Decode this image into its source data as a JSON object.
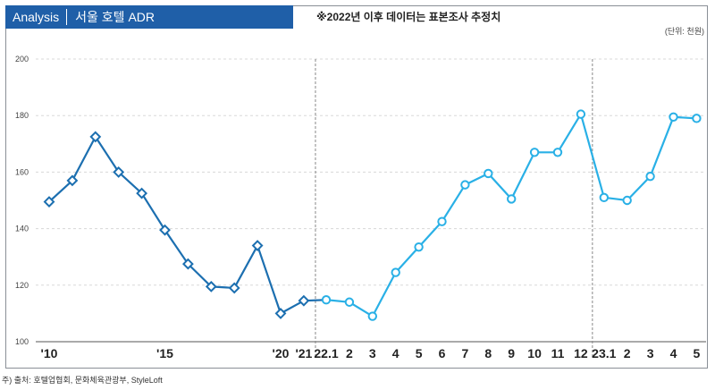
{
  "header": {
    "tag": "Analysis",
    "title": "서울 호텔 ADR"
  },
  "note": "※2022년 이후 데이터는 표본조사 추정치",
  "unit": "(단위: 천원)",
  "source": "주) 출처: 호텔업협회, 문화체육관광부, StyleLoft",
  "colors": {
    "annual": "#1c6fb0",
    "monthly": "#29b0e6",
    "header": "#1f5fa8"
  },
  "chart_data": {
    "type": "line",
    "yticks": [
      100,
      120,
      140,
      160,
      180,
      200
    ],
    "ylim": [
      100,
      200
    ],
    "grid": true,
    "xlabels": [
      "'10",
      "'15",
      "'20",
      "'21",
      "22.1",
      "2",
      "3",
      "4",
      "5",
      "6",
      "7",
      "8",
      "9",
      "10",
      "11",
      "12",
      "23.1",
      "2",
      "3",
      "4",
      "5"
    ],
    "series": [
      {
        "values": [
          149.5,
          157,
          172.5,
          160,
          152.5,
          139.5,
          127.5,
          119.5,
          119,
          134,
          110,
          114.5,
          114.8
        ]
      },
      {
        "values": [
          114.8,
          114,
          109,
          124.5,
          133.5,
          142.5,
          155.5,
          159.5,
          150.5,
          167,
          167,
          180.5,
          151,
          150,
          158.5,
          179.5,
          179
        ]
      }
    ]
  }
}
